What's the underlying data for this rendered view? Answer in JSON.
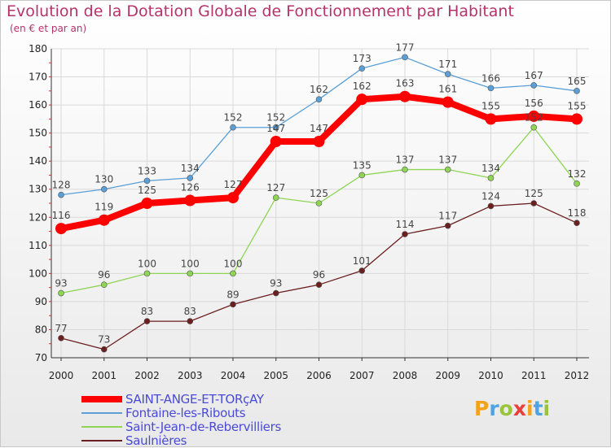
{
  "title": "Evolution de la Dotation Globale de Fonctionnement par Habitant",
  "subtitle": "(en € et par an)",
  "logo": {
    "letters": [
      {
        "ch": "P",
        "color": "#f2a31b"
      },
      {
        "ch": "r",
        "color": "#4fa3e0"
      },
      {
        "ch": "o",
        "color": "#9ac43a"
      },
      {
        "ch": "x",
        "color": "#e8403a"
      },
      {
        "ch": "i",
        "color": "#f2a31b"
      },
      {
        "ch": "t",
        "color": "#4fa3e0"
      },
      {
        "ch": "i",
        "color": "#9ac43a"
      }
    ]
  },
  "chart_data": {
    "type": "line",
    "title": "Evolution de la Dotation Globale de Fonctionnement par Habitant",
    "subtitle": "(en € et par an)",
    "x": [
      "2000",
      "2001",
      "2002",
      "2003",
      "2004",
      "2005",
      "2006",
      "2007",
      "2008",
      "2009",
      "2010",
      "2011",
      "2012"
    ],
    "ylim": [
      70,
      180
    ],
    "yticks": [
      70,
      80,
      90,
      100,
      110,
      120,
      130,
      140,
      150,
      160,
      170,
      180
    ],
    "grid": true,
    "legend_position": "bottom-left",
    "series": [
      {
        "name": "SAINT-ANGE-ET-TORçAY",
        "color": "#ff0000",
        "width": 8,
        "marker": 7,
        "values": [
          116,
          119,
          125,
          126,
          127,
          147,
          147,
          162,
          163,
          161,
          155,
          156,
          155
        ]
      },
      {
        "name": "Fontaine-les-Ribouts",
        "color": "#5b9fd6",
        "width": 1.3,
        "marker": 3.5,
        "values": [
          128,
          130,
          133,
          134,
          152,
          152,
          162,
          173,
          177,
          171,
          166,
          167,
          165
        ]
      },
      {
        "name": "Saint-Jean-de-Rebervilliers",
        "color": "#8ed455",
        "width": 1.3,
        "marker": 3.5,
        "values": [
          93,
          96,
          100,
          100,
          100,
          127,
          125,
          135,
          137,
          137,
          134,
          152,
          132
        ]
      },
      {
        "name": "Saulnières",
        "color": "#6b1f1f",
        "width": 1.3,
        "marker": 3.5,
        "values": [
          77,
          73,
          83,
          83,
          89,
          93,
          96,
          101,
          114,
          117,
          124,
          125,
          118
        ]
      }
    ]
  }
}
